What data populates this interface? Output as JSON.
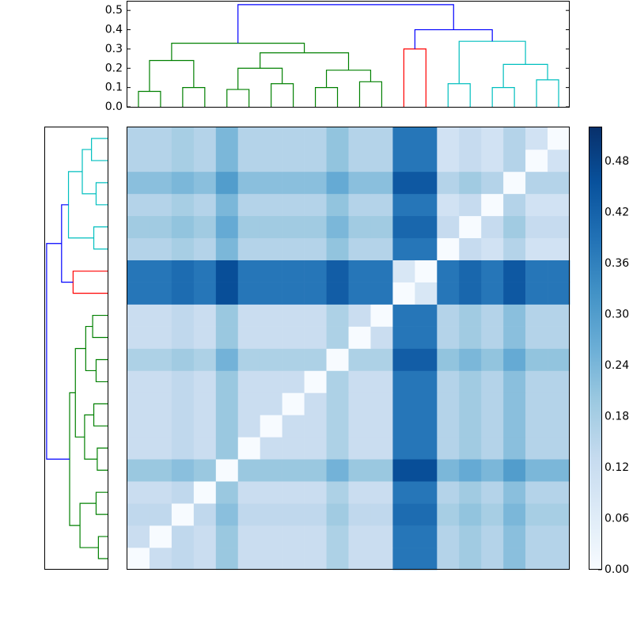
{
  "chart_data": {
    "type": "clustermap",
    "matrix": [
      [
        0,
        0.12,
        0.14,
        0.12,
        0.2,
        0.12,
        0.12,
        0.12,
        0.12,
        0.17,
        0.12,
        0.12,
        0.38,
        0.38,
        0.16,
        0.19,
        0.16,
        0.22,
        0.16,
        0.16
      ],
      [
        0.12,
        0,
        0.14,
        0.12,
        0.2,
        0.12,
        0.12,
        0.12,
        0.12,
        0.17,
        0.12,
        0.12,
        0.38,
        0.38,
        0.16,
        0.19,
        0.16,
        0.22,
        0.16,
        0.16
      ],
      [
        0.14,
        0.14,
        0,
        0.14,
        0.22,
        0.14,
        0.14,
        0.14,
        0.14,
        0.19,
        0.14,
        0.14,
        0.4,
        0.4,
        0.18,
        0.21,
        0.18,
        0.24,
        0.18,
        0.18
      ],
      [
        0.12,
        0.12,
        0.14,
        0,
        0.2,
        0.12,
        0.12,
        0.12,
        0.12,
        0.17,
        0.12,
        0.12,
        0.38,
        0.38,
        0.16,
        0.19,
        0.16,
        0.22,
        0.16,
        0.16
      ],
      [
        0.2,
        0.2,
        0.22,
        0.2,
        0,
        0.2,
        0.2,
        0.2,
        0.2,
        0.25,
        0.2,
        0.2,
        0.46,
        0.46,
        0.24,
        0.27,
        0.24,
        0.3,
        0.24,
        0.24
      ],
      [
        0.12,
        0.12,
        0.14,
        0.12,
        0.2,
        0,
        0.12,
        0.12,
        0.12,
        0.17,
        0.12,
        0.12,
        0.38,
        0.38,
        0.16,
        0.19,
        0.16,
        0.22,
        0.16,
        0.16
      ],
      [
        0.12,
        0.12,
        0.14,
        0.12,
        0.2,
        0.12,
        0,
        0.12,
        0.12,
        0.17,
        0.12,
        0.12,
        0.38,
        0.38,
        0.16,
        0.19,
        0.16,
        0.22,
        0.16,
        0.16
      ],
      [
        0.12,
        0.12,
        0.14,
        0.12,
        0.2,
        0.12,
        0.12,
        0,
        0.12,
        0.17,
        0.12,
        0.12,
        0.38,
        0.38,
        0.16,
        0.19,
        0.16,
        0.22,
        0.16,
        0.16
      ],
      [
        0.12,
        0.12,
        0.14,
        0.12,
        0.2,
        0.12,
        0.12,
        0.12,
        0,
        0.17,
        0.12,
        0.12,
        0.38,
        0.38,
        0.16,
        0.19,
        0.16,
        0.22,
        0.16,
        0.16
      ],
      [
        0.17,
        0.17,
        0.19,
        0.17,
        0.25,
        0.17,
        0.17,
        0.17,
        0.17,
        0,
        0.17,
        0.17,
        0.43,
        0.43,
        0.21,
        0.24,
        0.21,
        0.27,
        0.21,
        0.21
      ],
      [
        0.12,
        0.12,
        0.14,
        0.12,
        0.2,
        0.12,
        0.12,
        0.12,
        0.12,
        0.17,
        0,
        0.12,
        0.38,
        0.38,
        0.16,
        0.19,
        0.16,
        0.22,
        0.16,
        0.16
      ],
      [
        0.12,
        0.12,
        0.14,
        0.12,
        0.2,
        0.12,
        0.12,
        0.12,
        0.12,
        0.17,
        0.12,
        0,
        0.38,
        0.38,
        0.16,
        0.19,
        0.16,
        0.22,
        0.16,
        0.16
      ],
      [
        0.38,
        0.38,
        0.4,
        0.38,
        0.46,
        0.38,
        0.38,
        0.38,
        0.38,
        0.43,
        0.38,
        0.38,
        0,
        0.08,
        0.38,
        0.41,
        0.38,
        0.44,
        0.38,
        0.38
      ],
      [
        0.38,
        0.38,
        0.4,
        0.38,
        0.46,
        0.38,
        0.38,
        0.38,
        0.38,
        0.43,
        0.38,
        0.38,
        0.08,
        0,
        0.38,
        0.41,
        0.38,
        0.44,
        0.38,
        0.38
      ],
      [
        0.16,
        0.16,
        0.18,
        0.16,
        0.24,
        0.16,
        0.16,
        0.16,
        0.16,
        0.21,
        0.16,
        0.16,
        0.38,
        0.38,
        0,
        0.13,
        0.1,
        0.16,
        0.1,
        0.1
      ],
      [
        0.19,
        0.19,
        0.21,
        0.19,
        0.27,
        0.19,
        0.19,
        0.19,
        0.19,
        0.24,
        0.19,
        0.19,
        0.41,
        0.41,
        0.13,
        0,
        0.13,
        0.19,
        0.13,
        0.13
      ],
      [
        0.16,
        0.16,
        0.18,
        0.16,
        0.24,
        0.16,
        0.16,
        0.16,
        0.16,
        0.21,
        0.16,
        0.16,
        0.38,
        0.38,
        0.1,
        0.13,
        0,
        0.16,
        0.1,
        0.1
      ],
      [
        0.22,
        0.22,
        0.24,
        0.22,
        0.3,
        0.22,
        0.22,
        0.22,
        0.22,
        0.27,
        0.22,
        0.22,
        0.44,
        0.44,
        0.16,
        0.19,
        0.16,
        0,
        0.16,
        0.16
      ],
      [
        0.16,
        0.16,
        0.18,
        0.16,
        0.24,
        0.16,
        0.16,
        0.16,
        0.16,
        0.21,
        0.16,
        0.16,
        0.38,
        0.38,
        0.1,
        0.13,
        0.1,
        0.16,
        0,
        0.1
      ],
      [
        0.16,
        0.16,
        0.18,
        0.16,
        0.24,
        0.16,
        0.16,
        0.16,
        0.16,
        0.21,
        0.16,
        0.16,
        0.38,
        0.38,
        0.1,
        0.13,
        0.1,
        0.16,
        0.1,
        0
      ]
    ],
    "colormap": "Blues",
    "zlim": [
      0,
      0.52
    ],
    "colorbar_ticks": [
      {
        "value": 0,
        "label": "0.00"
      },
      0.06,
      0.12,
      0.18,
      0.24,
      {
        "value": 0.3,
        "label": "0.30"
      },
      0.36,
      0.42,
      0.48
    ],
    "dendrogram": {
      "xlim": [
        0,
        200
      ],
      "ylim": [
        0,
        0.55
      ],
      "yticks": [
        {
          "value": 0,
          "label": "0.0"
        },
        0.1,
        0.2,
        0.3,
        0.4,
        0.5
      ],
      "links": [
        {
          "x": [
            5,
            5,
            15,
            15
          ],
          "y": [
            0,
            0.08,
            0.08,
            0
          ],
          "color": "#008000"
        },
        {
          "x": [
            25,
            25,
            35,
            35
          ],
          "y": [
            0,
            0.1,
            0.1,
            0
          ],
          "color": "#008000"
        },
        {
          "x": [
            10,
            10,
            30,
            30
          ],
          "y": [
            0.08,
            0.24,
            0.24,
            0.1
          ],
          "color": "#008000"
        },
        {
          "x": [
            45,
            45,
            55,
            55
          ],
          "y": [
            0,
            0.09,
            0.09,
            0
          ],
          "color": "#008000"
        },
        {
          "x": [
            65,
            65,
            75,
            75
          ],
          "y": [
            0,
            0.12,
            0.12,
            0
          ],
          "color": "#008000"
        },
        {
          "x": [
            50,
            50,
            70,
            70
          ],
          "y": [
            0.09,
            0.2,
            0.2,
            0.12
          ],
          "color": "#008000"
        },
        {
          "x": [
            85,
            85,
            95,
            95
          ],
          "y": [
            0,
            0.1,
            0.1,
            0
          ],
          "color": "#008000"
        },
        {
          "x": [
            105,
            105,
            115,
            115
          ],
          "y": [
            0,
            0.13,
            0.13,
            0
          ],
          "color": "#008000"
        },
        {
          "x": [
            90,
            90,
            110,
            110
          ],
          "y": [
            0.1,
            0.19,
            0.19,
            0.13
          ],
          "color": "#008000"
        },
        {
          "x": [
            60,
            60,
            100,
            100
          ],
          "y": [
            0.2,
            0.28,
            0.28,
            0.19
          ],
          "color": "#008000"
        },
        {
          "x": [
            20,
            20,
            80,
            80
          ],
          "y": [
            0.24,
            0.33,
            0.33,
            0.28
          ],
          "color": "#008000"
        },
        {
          "x": [
            125,
            125,
            135,
            135
          ],
          "y": [
            0,
            0.3,
            0.3,
            0
          ],
          "color": "#ff0000"
        },
        {
          "x": [
            145,
            145,
            155,
            155
          ],
          "y": [
            0,
            0.12,
            0.12,
            0
          ],
          "color": "#00bfbf"
        },
        {
          "x": [
            165,
            165,
            175,
            175
          ],
          "y": [
            0,
            0.1,
            0.1,
            0
          ],
          "color": "#00bfbf"
        },
        {
          "x": [
            185,
            185,
            195,
            195
          ],
          "y": [
            0,
            0.14,
            0.14,
            0
          ],
          "color": "#00bfbf"
        },
        {
          "x": [
            170,
            170,
            190,
            190
          ],
          "y": [
            0.1,
            0.22,
            0.22,
            0.14
          ],
          "color": "#00bfbf"
        },
        {
          "x": [
            150,
            150,
            180,
            180
          ],
          "y": [
            0.12,
            0.34,
            0.34,
            0.22
          ],
          "color": "#00bfbf"
        },
        {
          "x": [
            130,
            130,
            165,
            165
          ],
          "y": [
            0.3,
            0.4,
            0.4,
            0.34
          ],
          "color": "#0000ff"
        },
        {
          "x": [
            50,
            50,
            147.5,
            147.5
          ],
          "y": [
            0.33,
            0.53,
            0.53,
            0.4
          ],
          "color": "#0000ff"
        }
      ]
    }
  }
}
